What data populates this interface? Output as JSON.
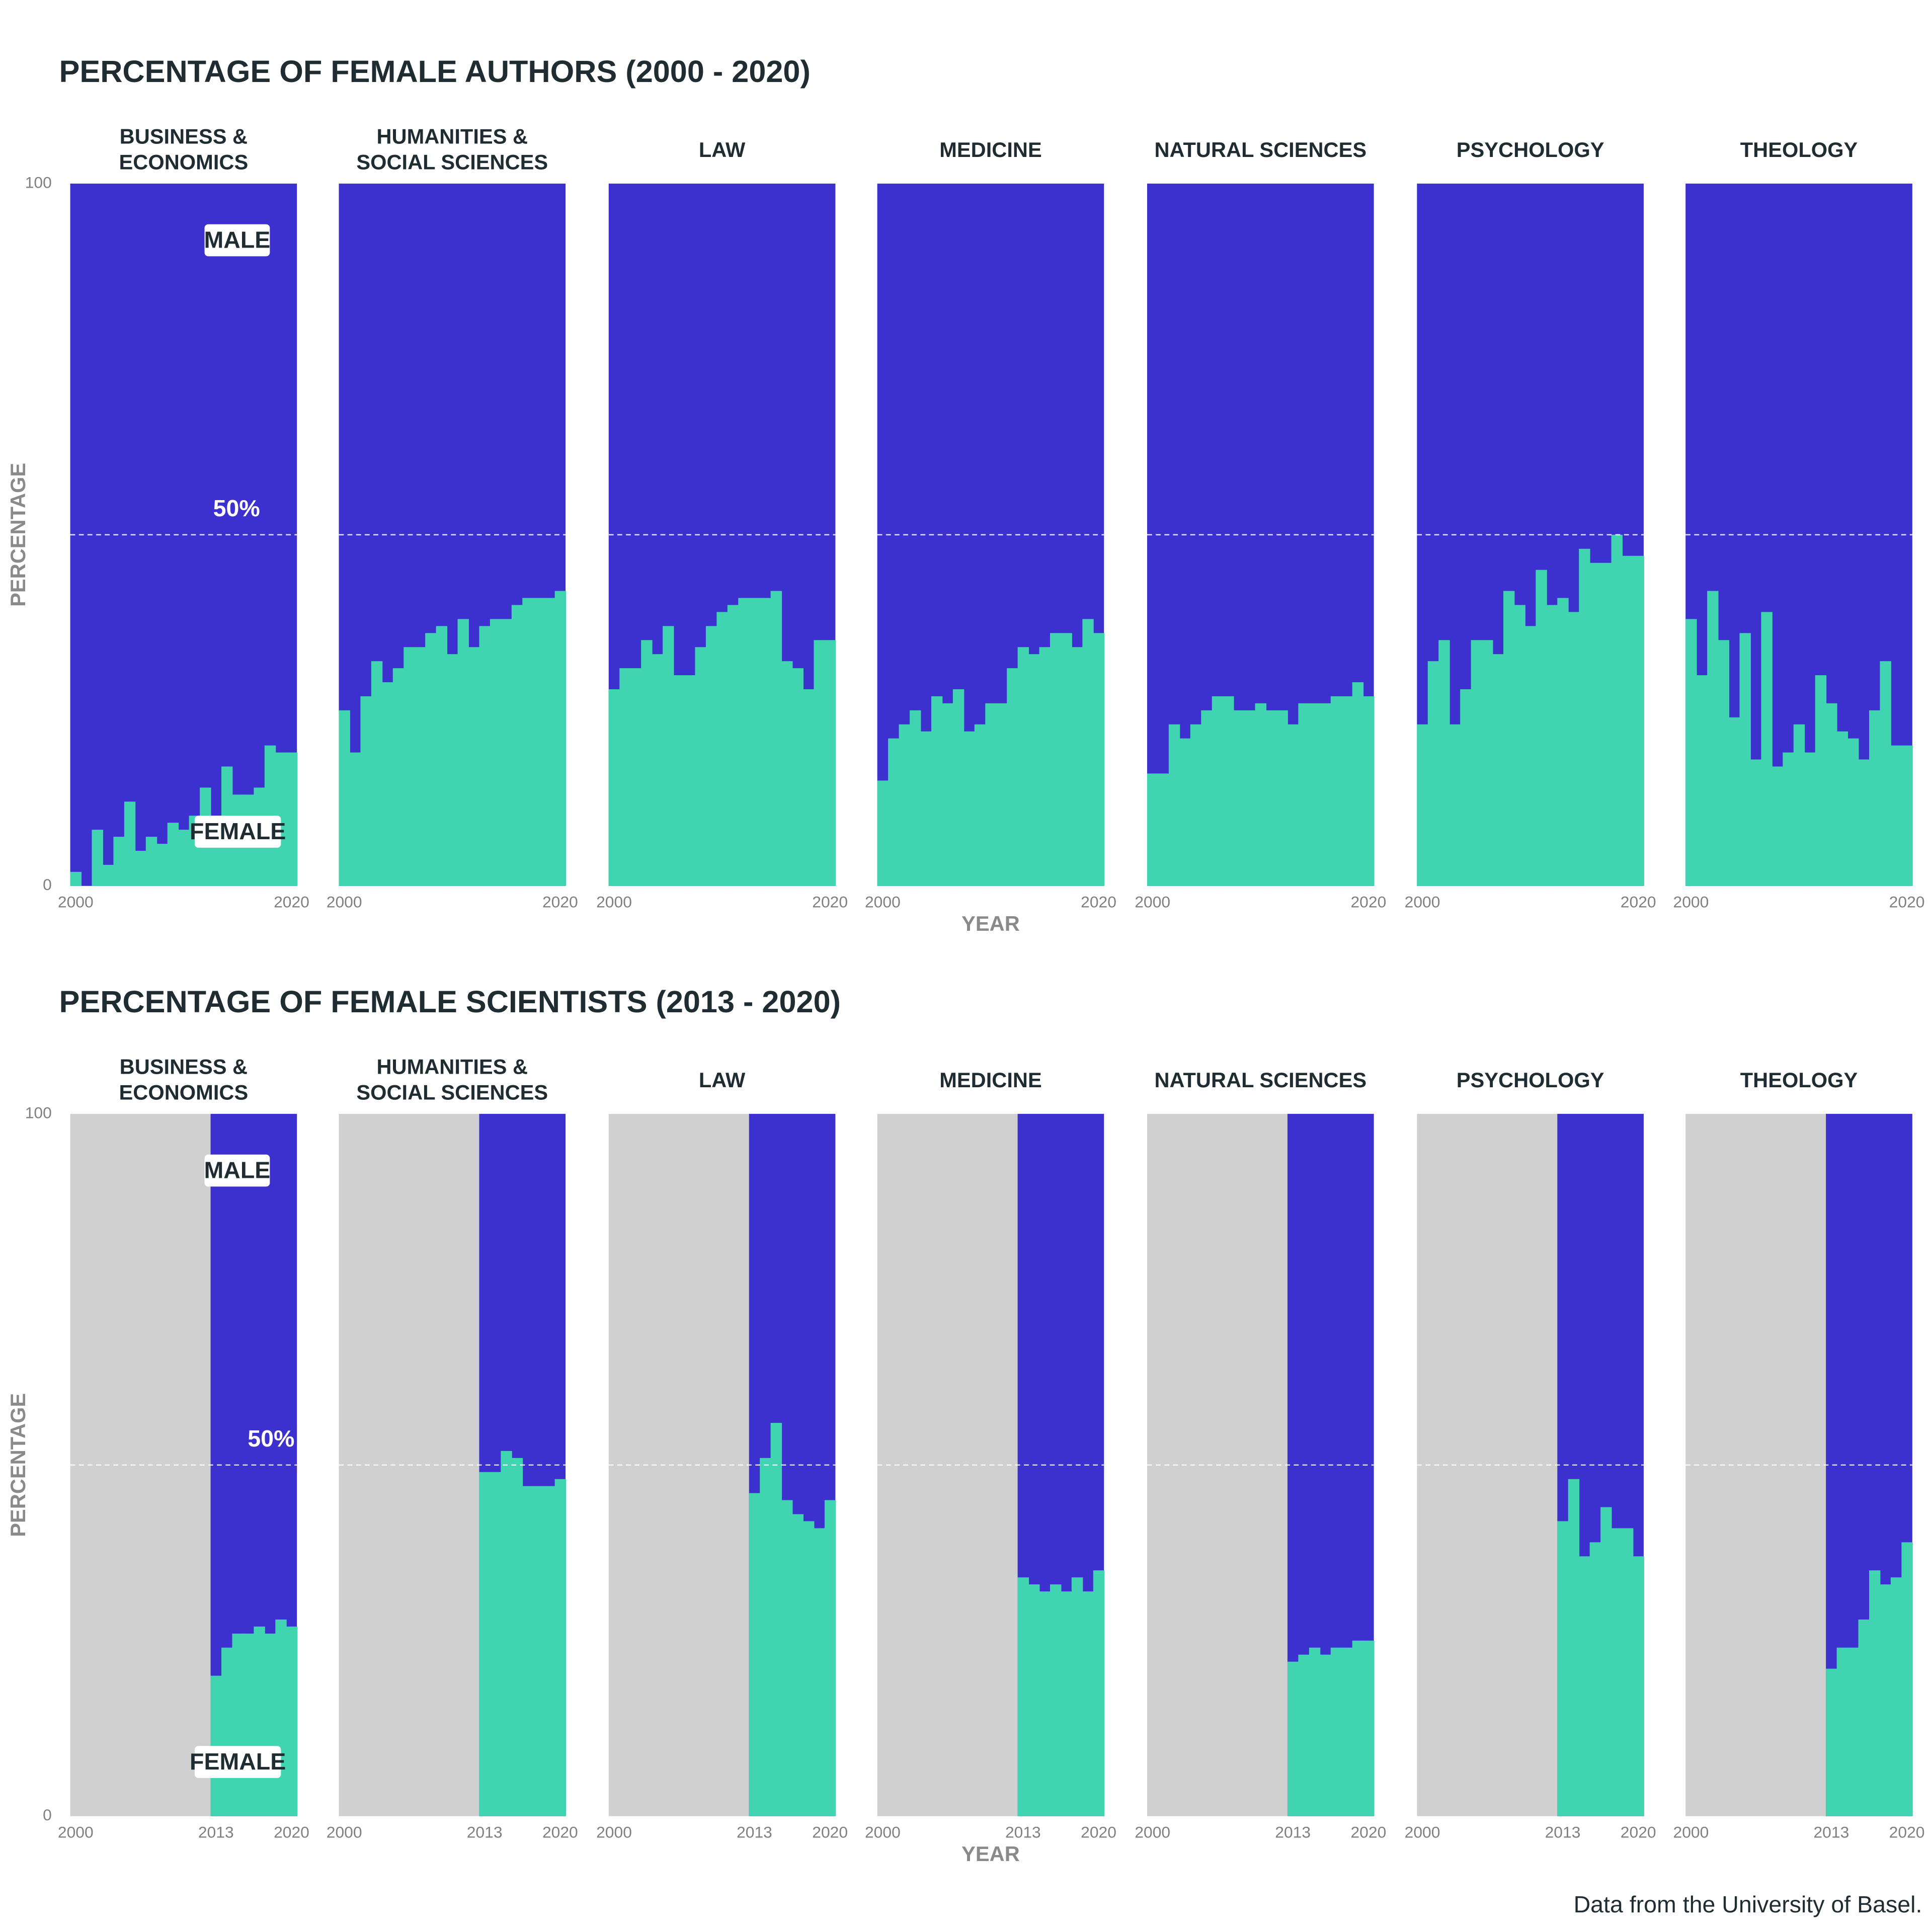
{
  "chart_data": [
    {
      "type": "area",
      "title": "PERCENTAGE OF FEMALE AUTHORS (2000 - 2020)",
      "ylabel": "PERCENTAGE",
      "xlabel": "YEAR",
      "x": [
        2000,
        2001,
        2002,
        2003,
        2004,
        2005,
        2006,
        2007,
        2008,
        2009,
        2010,
        2011,
        2012,
        2013,
        2014,
        2015,
        2016,
        2017,
        2018,
        2019,
        2020
      ],
      "xlim": [
        1999.5,
        2020.5
      ],
      "xticks": [
        2000,
        2020
      ],
      "ylim": [
        0,
        100
      ],
      "yticks": [
        0,
        100
      ],
      "reference": {
        "value": 50,
        "label": "50%"
      },
      "annotations": [
        "MALE",
        "FEMALE"
      ],
      "color": "#40d4b0",
      "background_color": "#3c31cf",
      "missing_color": "#d0d0d0",
      "facets": [
        {
          "label": [
            "BUSINESS &",
            "ECONOMICS"
          ],
          "values": [
            2,
            0,
            8,
            3,
            7,
            12,
            5,
            7,
            6,
            9,
            8,
            10,
            14,
            10,
            17,
            13,
            13,
            14,
            20,
            19,
            19
          ]
        },
        {
          "label": [
            "HUMANITIES &",
            "SOCIAL SCIENCES"
          ],
          "values": [
            25,
            19,
            27,
            32,
            29,
            31,
            34,
            34,
            36,
            37,
            33,
            38,
            34,
            37,
            38,
            38,
            40,
            41,
            41,
            41,
            42
          ]
        },
        {
          "label": [
            "LAW"
          ],
          "values": [
            28,
            31,
            31,
            35,
            33,
            37,
            30,
            30,
            34,
            37,
            39,
            40,
            41,
            41,
            41,
            42,
            32,
            31,
            28,
            35,
            35
          ]
        },
        {
          "label": [
            "MEDICINE"
          ],
          "values": [
            15,
            21,
            23,
            25,
            22,
            27,
            26,
            28,
            22,
            23,
            26,
            26,
            31,
            34,
            33,
            34,
            36,
            36,
            34,
            38,
            36
          ]
        },
        {
          "label": [
            "NATURAL SCIENCES"
          ],
          "values": [
            16,
            16,
            23,
            21,
            23,
            25,
            27,
            27,
            25,
            25,
            26,
            25,
            25,
            23,
            26,
            26,
            26,
            27,
            27,
            29,
            27
          ]
        },
        {
          "label": [
            "PSYCHOLOGY"
          ],
          "values": [
            23,
            32,
            35,
            23,
            28,
            35,
            35,
            33,
            42,
            40,
            37,
            45,
            40,
            41,
            39,
            48,
            46,
            46,
            50,
            47,
            47
          ]
        },
        {
          "label": [
            "THEOLOGY"
          ],
          "values": [
            38,
            30,
            42,
            35,
            24,
            36,
            18,
            39,
            17,
            19,
            23,
            19,
            30,
            26,
            22,
            21,
            18,
            25,
            32,
            20,
            20
          ]
        }
      ]
    },
    {
      "type": "area",
      "title": "PERCENTAGE OF FEMALE SCIENTISTS (2013 - 2020)",
      "ylabel": "PERCENTAGE",
      "xlabel": "YEAR",
      "x": [
        2000,
        2001,
        2002,
        2003,
        2004,
        2005,
        2006,
        2007,
        2008,
        2009,
        2010,
        2011,
        2012,
        2013,
        2014,
        2015,
        2016,
        2017,
        2018,
        2019,
        2020
      ],
      "xlim": [
        1999.5,
        2020.5
      ],
      "xticks": [
        2000,
        2013,
        2020
      ],
      "ylim": [
        0,
        100
      ],
      "yticks": [
        0,
        100
      ],
      "reference": {
        "value": 50,
        "label": "50%"
      },
      "annotations": [
        "MALE",
        "FEMALE"
      ],
      "color": "#40d4b0",
      "background_color": "#3c31cf",
      "missing_color": "#d0d0d0",
      "facets": [
        {
          "label": [
            "BUSINESS &",
            "ECONOMICS"
          ],
          "values": [
            null,
            null,
            null,
            null,
            null,
            null,
            null,
            null,
            null,
            null,
            null,
            null,
            null,
            20,
            24,
            26,
            26,
            27,
            26,
            28,
            27
          ]
        },
        {
          "label": [
            "HUMANITIES &",
            "SOCIAL SCIENCES"
          ],
          "values": [
            null,
            null,
            null,
            null,
            null,
            null,
            null,
            null,
            null,
            null,
            null,
            null,
            null,
            49,
            49,
            52,
            51,
            47,
            47,
            47,
            48
          ]
        },
        {
          "label": [
            "LAW"
          ],
          "values": [
            null,
            null,
            null,
            null,
            null,
            null,
            null,
            null,
            null,
            null,
            null,
            null,
            null,
            46,
            51,
            56,
            45,
            43,
            42,
            41,
            45
          ]
        },
        {
          "label": [
            "MEDICINE"
          ],
          "values": [
            null,
            null,
            null,
            null,
            null,
            null,
            null,
            null,
            null,
            null,
            null,
            null,
            null,
            34,
            33,
            32,
            33,
            32,
            34,
            32,
            35
          ]
        },
        {
          "label": [
            "NATURAL SCIENCES"
          ],
          "values": [
            null,
            null,
            null,
            null,
            null,
            null,
            null,
            null,
            null,
            null,
            null,
            null,
            null,
            22,
            23,
            24,
            23,
            24,
            24,
            25,
            25
          ]
        },
        {
          "label": [
            "PSYCHOLOGY"
          ],
          "values": [
            null,
            null,
            null,
            null,
            null,
            null,
            null,
            null,
            null,
            null,
            null,
            null,
            null,
            42,
            48,
            37,
            39,
            44,
            41,
            41,
            37
          ]
        },
        {
          "label": [
            "THEOLOGY"
          ],
          "values": [
            null,
            null,
            null,
            null,
            null,
            null,
            null,
            null,
            null,
            null,
            null,
            null,
            null,
            21,
            24,
            24,
            28,
            35,
            33,
            34,
            39
          ]
        }
      ]
    }
  ],
  "caption": "Data from the University of Basel."
}
